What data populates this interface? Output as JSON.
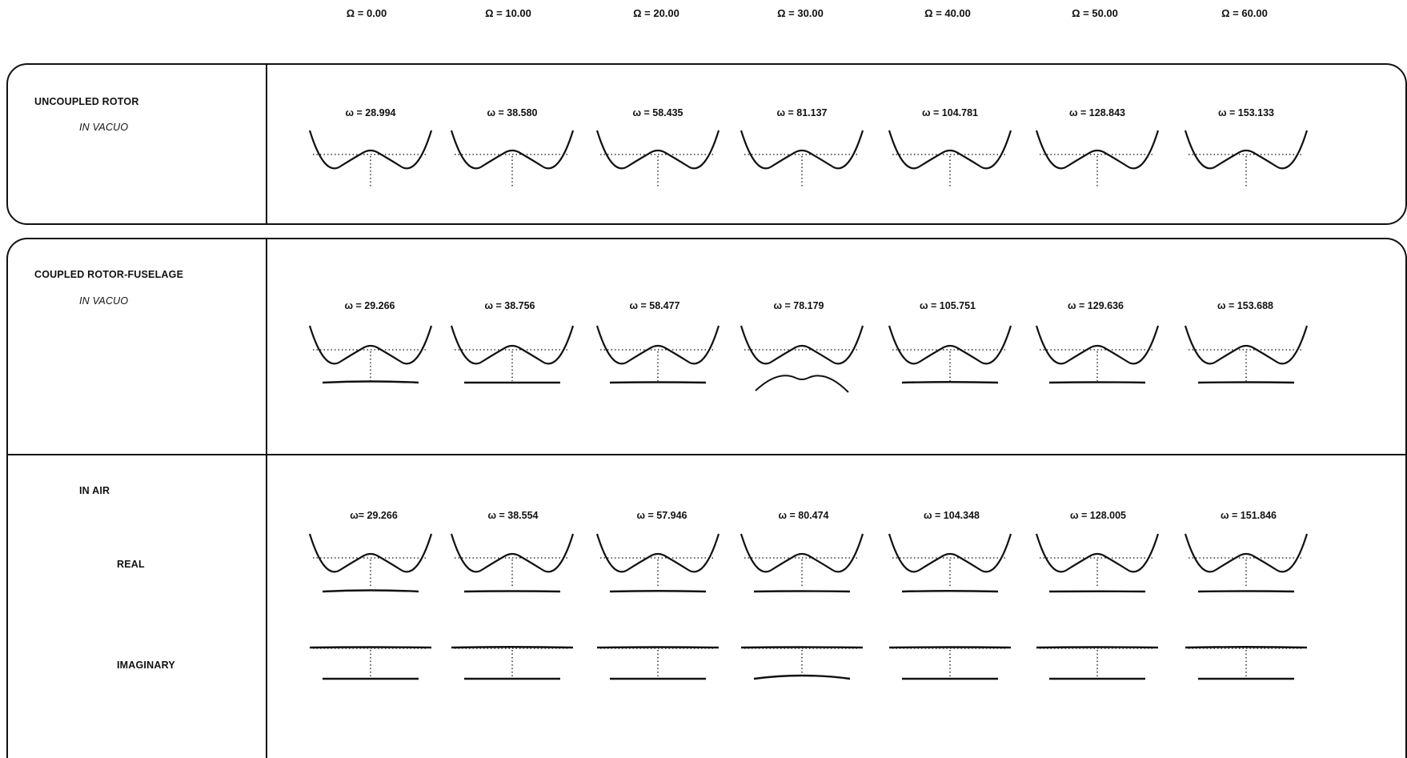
{
  "rotor_speeds": [
    "Ω = 0.00",
    "Ω = 10.00",
    "Ω = 20.00",
    "Ω = 30.00",
    "Ω = 40.00",
    "Ω = 50.00",
    "Ω = 60.00"
  ],
  "sections": {
    "uncoupled": {
      "title": "UNCOUPLED ROTOR",
      "subtitle": "IN VACUO",
      "frequencies": [
        "ω = 28.994",
        "ω = 38.580",
        "ω = 58.435",
        "ω = 81.137",
        "ω = 104.781",
        "ω = 128.843",
        "ω = 153.133"
      ]
    },
    "coupled": {
      "title": "COUPLED ROTOR-FUSELAGE",
      "subtitle": "IN VACUO",
      "frequencies": [
        "ω = 29.266",
        "ω = 38.756",
        "ω = 58.477",
        "ω = 78.179",
        "ω = 105.751",
        "ω = 129.636",
        "ω = 153.688"
      ]
    },
    "in_air": {
      "title": "IN AIR",
      "real_label": "REAL",
      "imaginary_label": "IMAGINARY",
      "frequencies": [
        "ω= 29.266",
        "ω = 38.554",
        "ω = 57.946",
        "ω = 80.474",
        "ω = 104.348",
        "ω = 128.005",
        "ω = 151.846"
      ]
    }
  },
  "mode_shapes": {
    "uncoupled": {
      "fuselage": []
    },
    "coupled": {
      "fuselage_curvature": [
        0.3,
        0.0,
        0.1,
        1.0,
        0.15,
        0.1,
        0.1
      ]
    },
    "in_air_real": {
      "fuselage_curvature": [
        0.3,
        0.1,
        0.15,
        0.1,
        0.15,
        0.05,
        0.1
      ]
    },
    "in_air_imaginary": {
      "rotor_curvature": [
        0.1,
        0.15,
        0.1,
        0.1,
        0.1,
        0.1,
        0.15
      ],
      "fuselage_curvature": [
        0,
        0,
        0,
        0.5,
        0,
        0,
        0
      ]
    }
  },
  "colors": {
    "ink": "#111111",
    "background": "#ffffff"
  }
}
